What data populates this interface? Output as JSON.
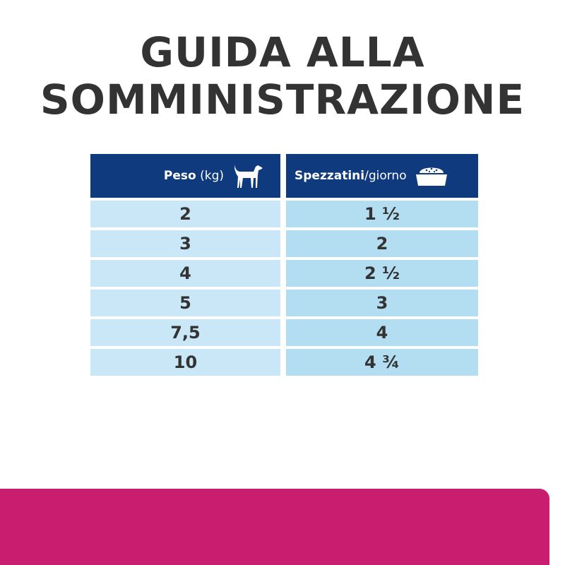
{
  "title": {
    "line1": "GUIDA ALLA",
    "line2": "SOMMINISTRAZIONE"
  },
  "table": {
    "weight_header": {
      "bold": "Peso",
      "light": " (kg)",
      "icon": "dog-icon"
    },
    "portion_header": {
      "bold": "Spezzatini",
      "light": "/giorno",
      "icon": "food-bowl-icon"
    },
    "rows": [
      {
        "weight": "2",
        "portion": "1 ½"
      },
      {
        "weight": "3",
        "portion": "2"
      },
      {
        "weight": "4",
        "portion": "2 ½"
      },
      {
        "weight": "5",
        "portion": "3"
      },
      {
        "weight": "7,5",
        "portion": "4"
      },
      {
        "weight": "10",
        "portion": "4 ¾"
      }
    ]
  },
  "colors": {
    "header": "#0f3a7d",
    "row_left": "#c9e7f6",
    "row_right": "#b3ddf1",
    "band": "#c91e70",
    "text": "#333333"
  }
}
